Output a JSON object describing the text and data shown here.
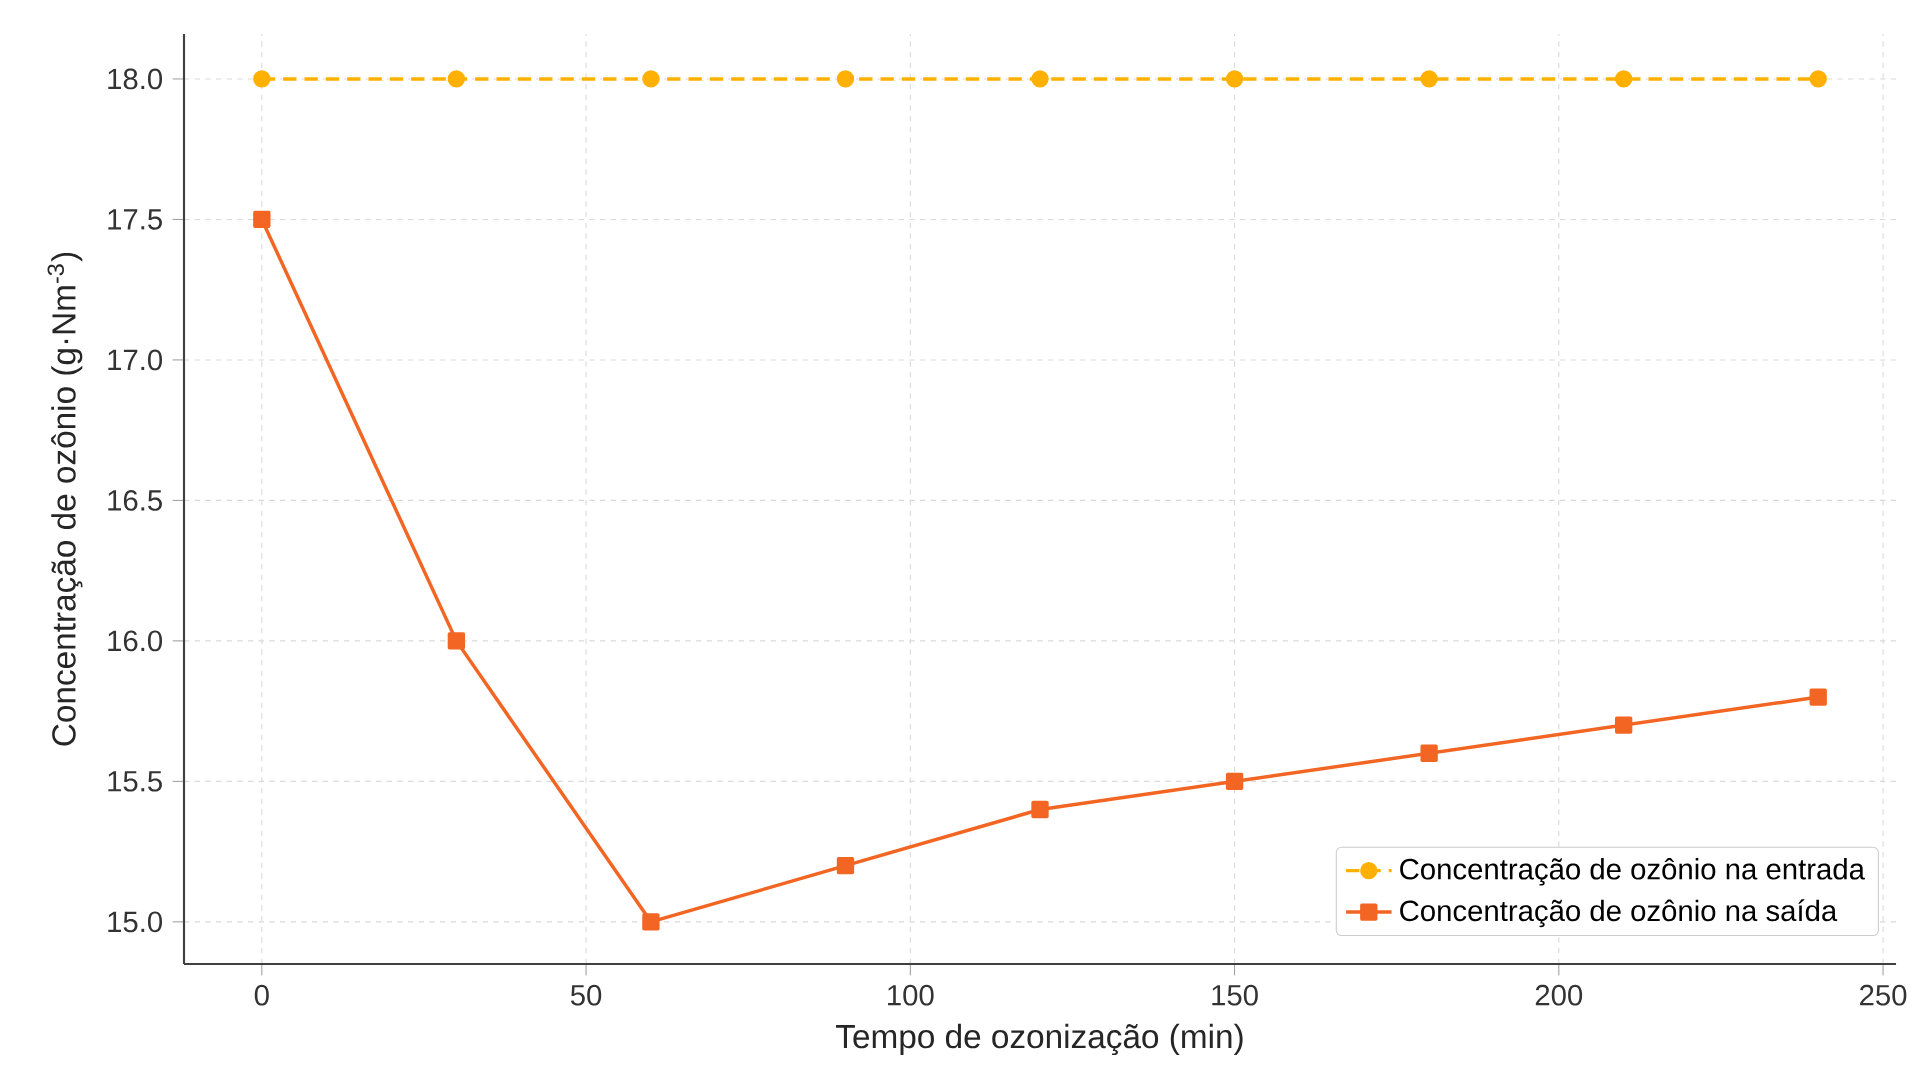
{
  "chart_data": {
    "type": "line",
    "xlabel": "Tempo de ozonização (min)",
    "ylabel": "Concentração de ozônio (g·Nm$^{-3}$)",
    "x": [
      0,
      30,
      60,
      90,
      120,
      150,
      180,
      210,
      240
    ],
    "series": [
      {
        "name": "Concentração de ozônio na entrada",
        "color": "#ffb000",
        "marker": "circle",
        "line_style": "dashed",
        "values": [
          18.0,
          18.0,
          18.0,
          18.0,
          18.0,
          18.0,
          18.0,
          18.0,
          18.0
        ]
      },
      {
        "name": "Concentração de ozônio na saída",
        "color": "#f26522",
        "marker": "square",
        "line_style": "solid",
        "values": [
          17.5,
          16.0,
          15.0,
          15.2,
          15.4,
          15.5,
          15.6,
          15.7,
          15.8
        ]
      }
    ],
    "xlim": [
      -12,
      252
    ],
    "ylim": [
      14.85,
      18.16
    ],
    "xticks": [
      0,
      50,
      100,
      150,
      200,
      250
    ],
    "yticks": [
      {
        "value": 15,
        "label": "15.0"
      },
      {
        "value": 15.5,
        "label": "15.5"
      },
      {
        "value": 16,
        "label": "16.0"
      },
      {
        "value": 16.5,
        "label": "16.5"
      },
      {
        "value": 17,
        "label": "17.0"
      },
      {
        "value": 17.5,
        "label": "17.5"
      },
      {
        "value": 18,
        "label": "18.0"
      }
    ],
    "grid": true,
    "legend": "bottom right"
  }
}
